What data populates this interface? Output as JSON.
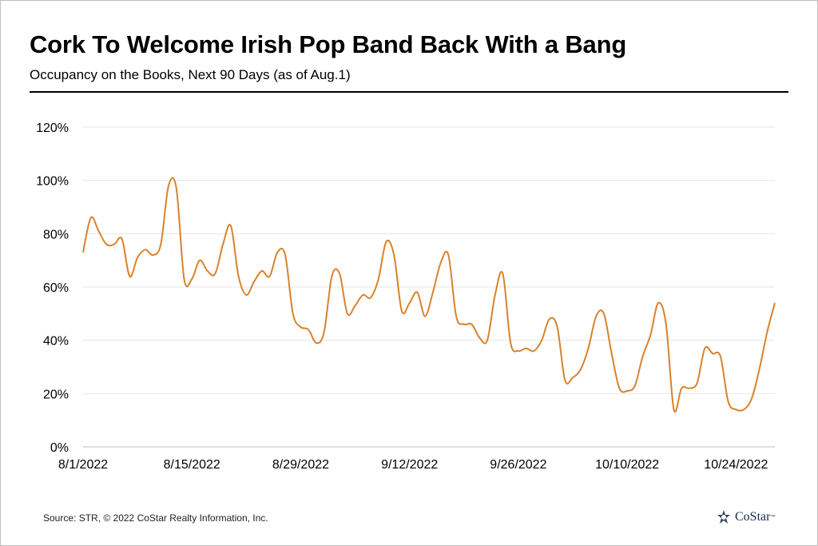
{
  "header": {
    "title": "Cork To Welcome Irish Pop Band Back With a Bang",
    "subtitle": "Occupancy on the Books, Next 90 Days (as of Aug.1)"
  },
  "footer": {
    "source": "Source: STR, © 2022  CoStar Realty Information, Inc.",
    "logo_text": "CoStar",
    "logo_tm": "™"
  },
  "chart_data": {
    "type": "line",
    "title": "Cork To Welcome Irish Pop Band Back With a Bang",
    "subtitle": "Occupancy on the Books, Next 90 Days (as of Aug.1)",
    "xlabel": "",
    "ylabel": "",
    "ylim": [
      0,
      120
    ],
    "y_ticks": [
      0,
      20,
      40,
      60,
      80,
      100,
      120
    ],
    "y_tick_labels": [
      "0%",
      "20%",
      "40%",
      "60%",
      "80%",
      "100%",
      "120%"
    ],
    "x_tick_labels": [
      "8/1/2022",
      "8/15/2022",
      "8/29/2022",
      "9/12/2022",
      "9/26/2022",
      "10/10/2022",
      "10/24/2022"
    ],
    "x_tick_dates": [
      "2022-08-01",
      "2022-08-15",
      "2022-08-29",
      "2022-09-12",
      "2022-09-26",
      "2022-10-10",
      "2022-10-24"
    ],
    "grid": true,
    "line_color": "#d9822b",
    "series": [
      {
        "x": [
          "2022-08-01",
          "2022-08-02",
          "2022-08-03",
          "2022-08-04",
          "2022-08-05",
          "2022-08-06",
          "2022-08-07",
          "2022-08-08",
          "2022-08-09",
          "2022-08-10",
          "2022-08-11",
          "2022-08-12",
          "2022-08-13",
          "2022-08-14",
          "2022-08-15",
          "2022-08-16",
          "2022-08-17",
          "2022-08-18",
          "2022-08-19",
          "2022-08-20",
          "2022-08-21",
          "2022-08-22",
          "2022-08-23",
          "2022-08-24",
          "2022-08-25",
          "2022-08-26",
          "2022-08-27",
          "2022-08-28",
          "2022-08-29",
          "2022-08-30",
          "2022-08-31",
          "2022-09-01",
          "2022-09-02",
          "2022-09-03",
          "2022-09-04",
          "2022-09-05",
          "2022-09-06",
          "2022-09-07",
          "2022-09-08",
          "2022-09-09",
          "2022-09-10",
          "2022-09-11",
          "2022-09-12",
          "2022-09-13",
          "2022-09-14",
          "2022-09-15",
          "2022-09-16",
          "2022-09-17",
          "2022-09-18",
          "2022-09-19",
          "2022-09-20",
          "2022-09-21",
          "2022-09-22",
          "2022-09-23",
          "2022-09-24",
          "2022-09-25",
          "2022-09-26",
          "2022-09-27",
          "2022-09-28",
          "2022-09-29",
          "2022-09-30",
          "2022-10-01",
          "2022-10-02",
          "2022-10-03",
          "2022-10-04",
          "2022-10-05",
          "2022-10-06",
          "2022-10-07",
          "2022-10-08",
          "2022-10-09",
          "2022-10-10",
          "2022-10-11",
          "2022-10-12",
          "2022-10-13",
          "2022-10-14",
          "2022-10-15",
          "2022-10-16",
          "2022-10-17",
          "2022-10-18",
          "2022-10-19",
          "2022-10-20",
          "2022-10-21",
          "2022-10-22",
          "2022-10-23",
          "2022-10-24",
          "2022-10-25",
          "2022-10-26",
          "2022-10-27",
          "2022-10-28",
          "2022-10-29"
        ],
        "values": [
          73,
          86,
          81,
          76,
          76,
          78,
          64,
          71,
          74,
          72,
          76,
          98,
          97,
          63,
          63,
          70,
          66,
          65,
          76,
          83,
          64,
          57,
          62,
          66,
          64,
          73,
          72,
          50,
          45,
          44,
          39,
          43,
          64,
          65,
          50,
          53,
          57,
          56,
          63,
          77,
          72,
          51,
          54,
          58,
          49,
          58,
          69,
          72,
          49,
          46,
          46,
          41,
          40,
          57,
          65,
          39,
          36,
          37,
          36,
          40,
          48,
          45,
          25,
          26,
          29,
          37,
          49,
          50,
          35,
          22,
          21,
          23,
          34,
          42,
          54,
          46,
          14,
          22,
          22,
          24,
          37,
          35,
          34,
          17,
          14,
          14,
          18,
          29,
          43,
          54
        ]
      }
    ]
  }
}
